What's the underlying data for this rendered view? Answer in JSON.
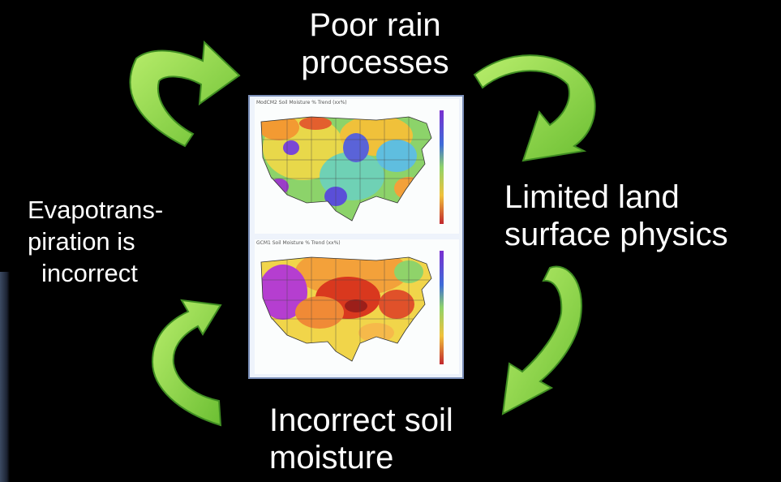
{
  "labels": {
    "rain": [
      "Poor rain",
      "processes"
    ],
    "land": [
      "Limited land",
      "surface physics"
    ],
    "evap": [
      "Evapotrans-",
      "piration is",
      "incorrect"
    ],
    "soil": [
      "Incorrect soil",
      "moisture"
    ]
  },
  "maps": {
    "top_title": "ModCM2 Soil Moisture % Trend (xx%)",
    "bottom_title": "GCM1 Soil Moisture % Trend (xx%)"
  },
  "colors": {
    "arrow_fill": "#8fd64a",
    "arrow_edge": "#3f8d22",
    "background": "#000000",
    "map_frame": "#7b8fb8"
  }
}
